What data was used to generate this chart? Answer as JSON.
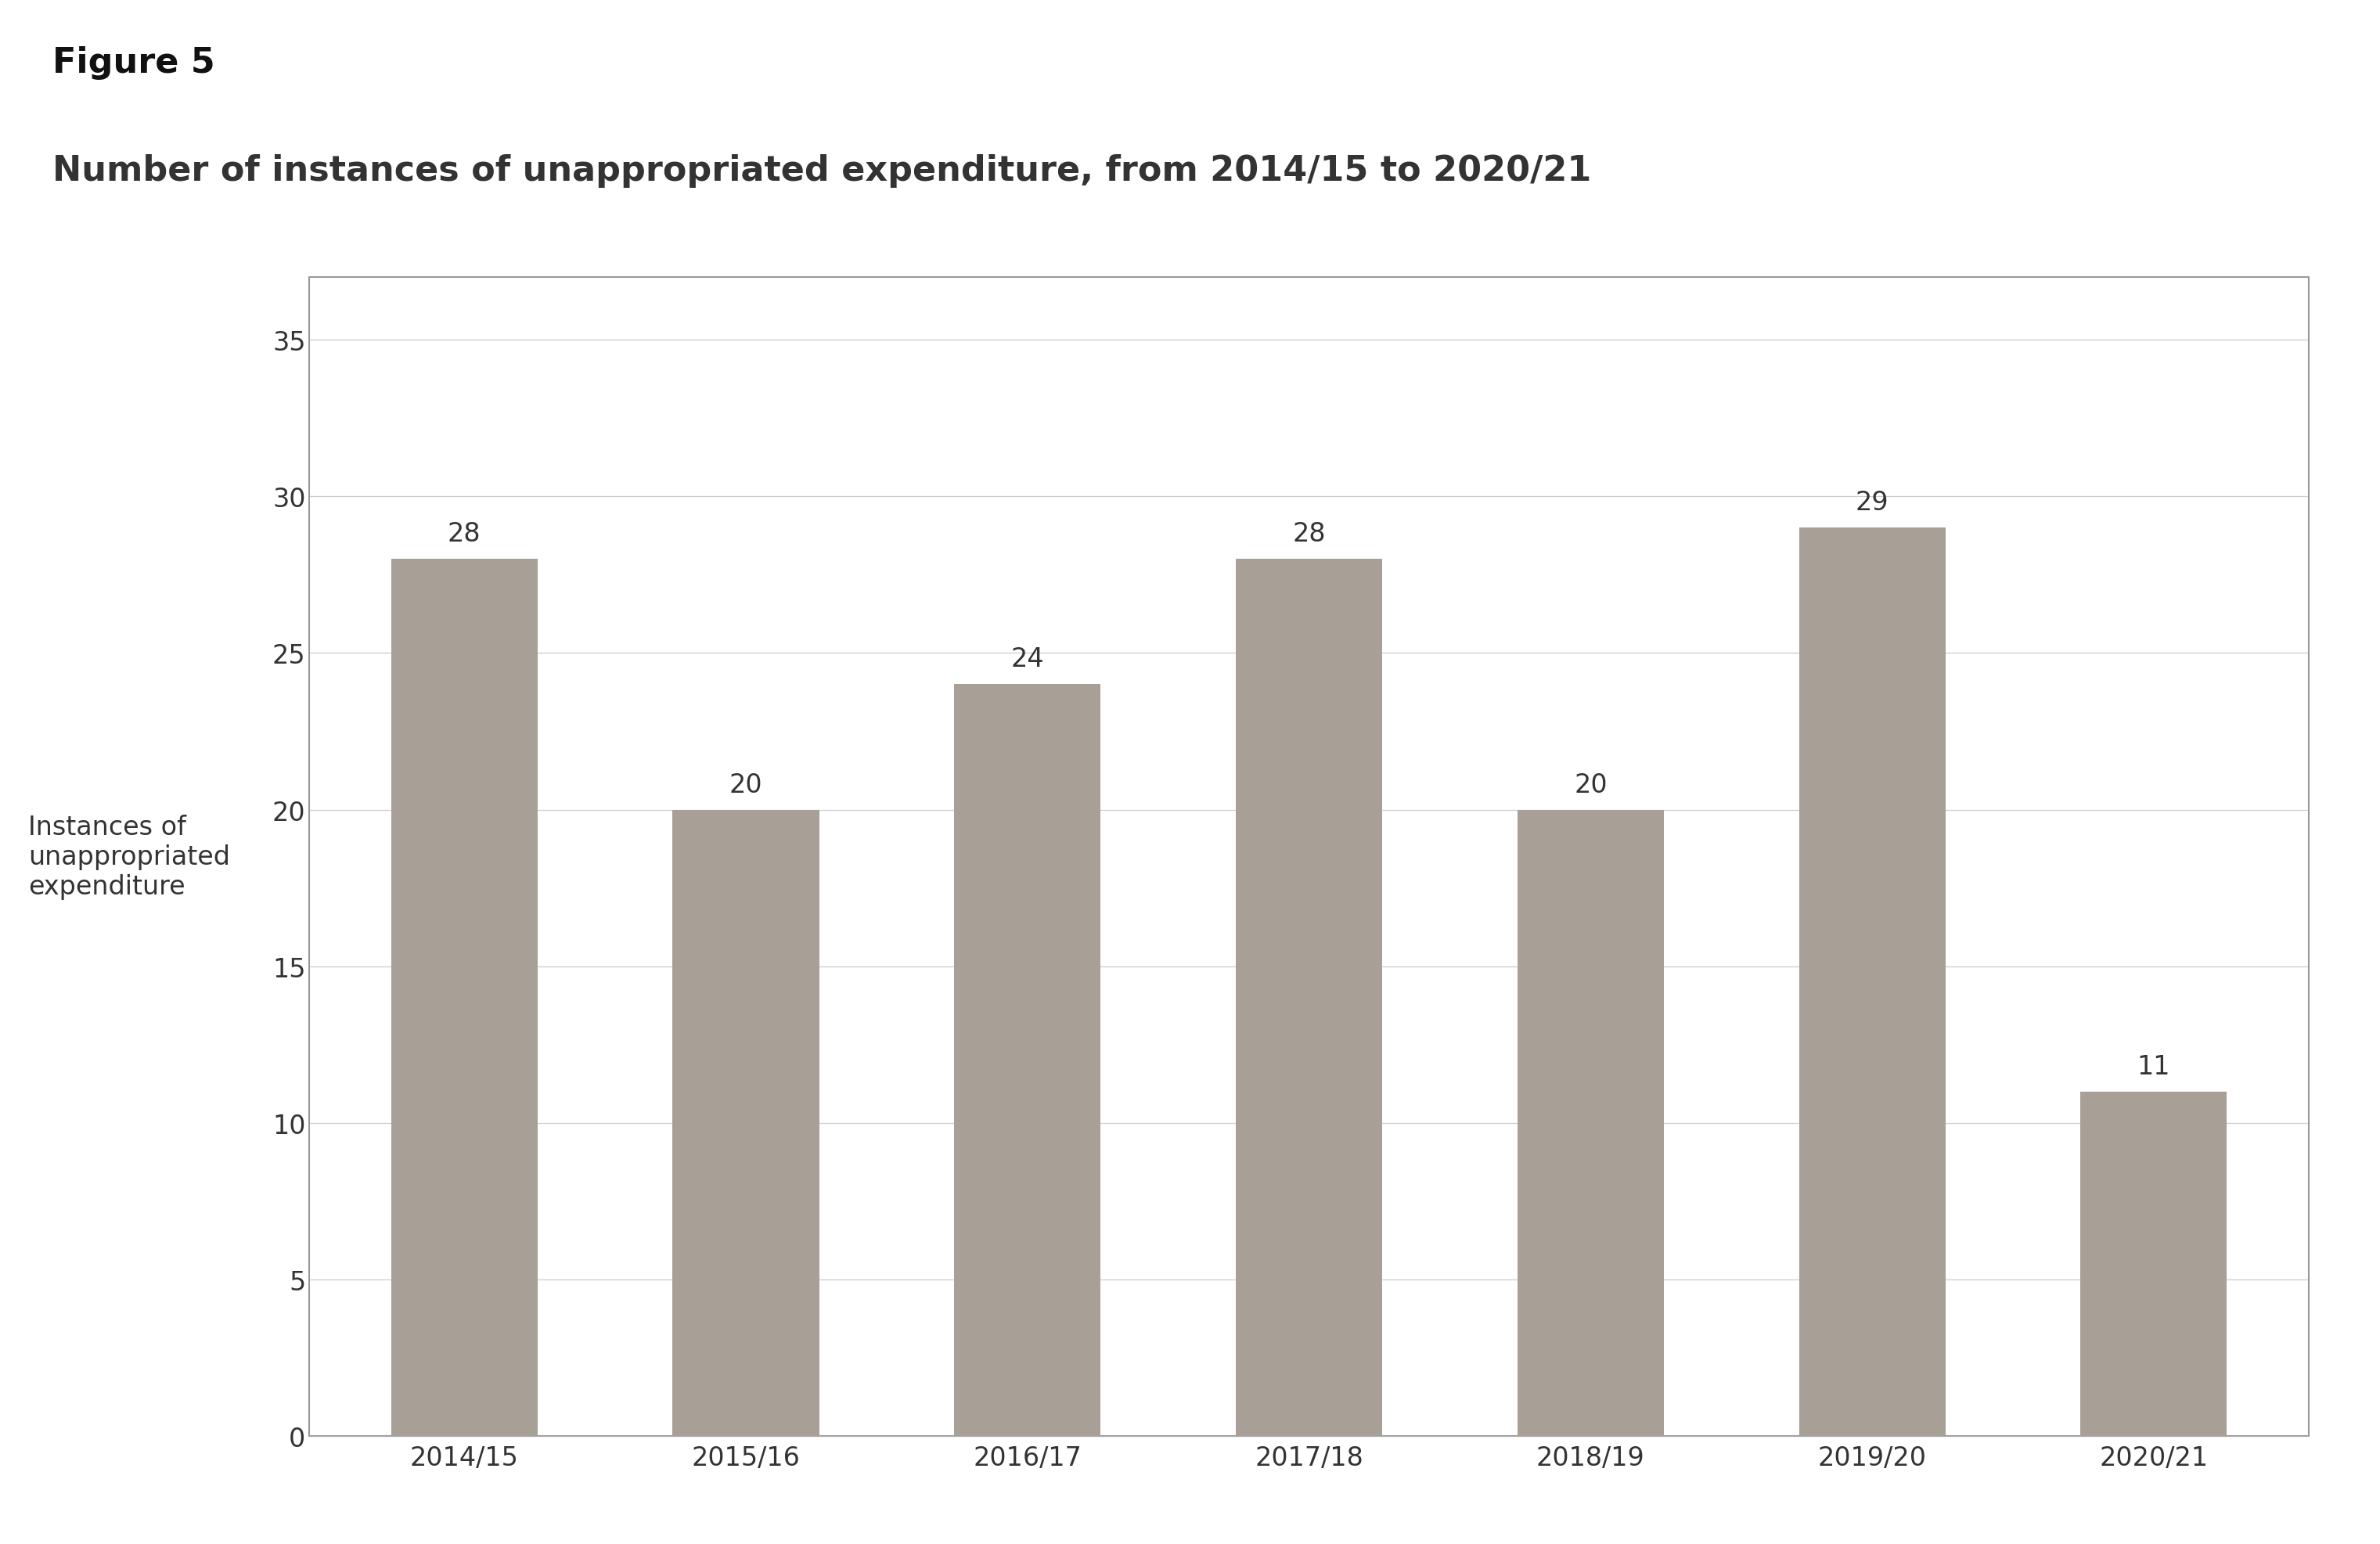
{
  "figure_label": "Figure 5",
  "title": "Number of instances of unappropriated expenditure, from 2014/15 to 2020/21",
  "categories": [
    "2014/15",
    "2015/16",
    "2016/17",
    "2017/18",
    "2018/19",
    "2019/20",
    "2020/21"
  ],
  "values": [
    28,
    20,
    24,
    28,
    20,
    29,
    11
  ],
  "bar_color": "#a89f97",
  "ylabel": "Instances of\nunappropriated\nexpenditure",
  "ylim": [
    0,
    37
  ],
  "yticks": [
    0,
    5,
    10,
    15,
    20,
    25,
    30,
    35
  ],
  "background_color": "#ffffff",
  "grid_color": "#cccccc",
  "tick_fontsize": 24,
  "value_label_fontsize": 24,
  "title_fontsize": 32,
  "figure_label_fontsize": 32,
  "ylabel_fontsize": 24,
  "bar_width": 0.52
}
